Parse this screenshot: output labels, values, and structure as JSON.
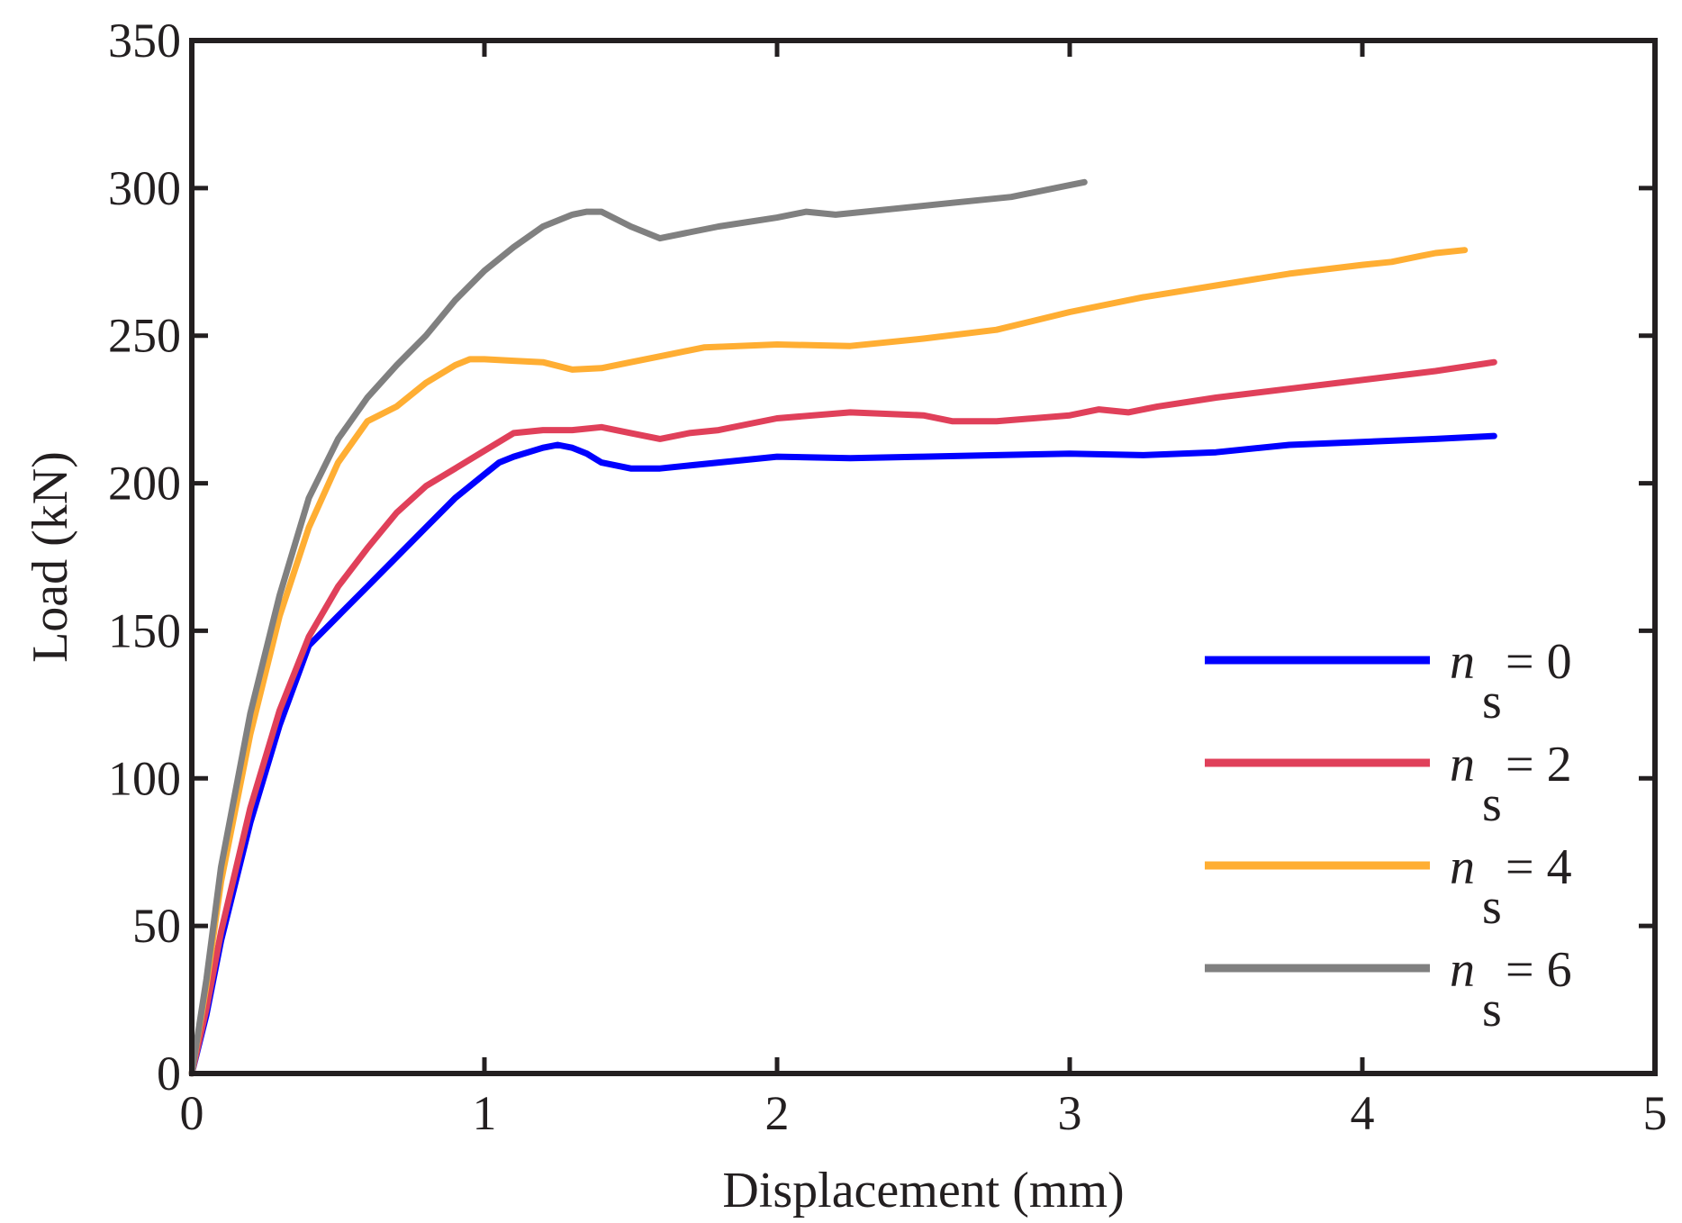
{
  "chart_data": {
    "type": "line",
    "title": "",
    "xlabel": "Displacement (mm)",
    "ylabel": "Load (kN)",
    "xlim": [
      0,
      5
    ],
    "ylim": [
      0,
      350
    ],
    "xticks": [
      0,
      1,
      2,
      3,
      4,
      5
    ],
    "yticks": [
      0,
      50,
      100,
      150,
      200,
      250,
      300,
      350
    ],
    "grid": false,
    "legend_position": "right",
    "legend_symbol": "n",
    "legend_subscript": "s",
    "series": [
      {
        "name": "n_s = 0",
        "label_value": "= 0",
        "color": "#0000ff",
        "points": [
          [
            0,
            0
          ],
          [
            0.05,
            20
          ],
          [
            0.1,
            45
          ],
          [
            0.2,
            85
          ],
          [
            0.3,
            118
          ],
          [
            0.4,
            145
          ],
          [
            0.5,
            155
          ],
          [
            0.6,
            165
          ],
          [
            0.7,
            175
          ],
          [
            0.8,
            185
          ],
          [
            0.9,
            195
          ],
          [
            1.0,
            203
          ],
          [
            1.05,
            207
          ],
          [
            1.1,
            209
          ],
          [
            1.2,
            212
          ],
          [
            1.25,
            213
          ],
          [
            1.3,
            212
          ],
          [
            1.35,
            210
          ],
          [
            1.4,
            207
          ],
          [
            1.5,
            205
          ],
          [
            1.6,
            205
          ],
          [
            1.7,
            206
          ],
          [
            1.8,
            207
          ],
          [
            1.9,
            208
          ],
          [
            2.0,
            209
          ],
          [
            2.25,
            208.5
          ],
          [
            2.5,
            209
          ],
          [
            2.75,
            209.5
          ],
          [
            3.0,
            210
          ],
          [
            3.25,
            209.5
          ],
          [
            3.5,
            210.5
          ],
          [
            3.75,
            213
          ],
          [
            4.0,
            214
          ],
          [
            4.25,
            215
          ],
          [
            4.45,
            216
          ]
        ]
      },
      {
        "name": "n_s = 2",
        "label_value": "= 2",
        "color": "#e0405a",
        "points": [
          [
            0,
            0
          ],
          [
            0.05,
            22
          ],
          [
            0.1,
            48
          ],
          [
            0.2,
            90
          ],
          [
            0.3,
            123
          ],
          [
            0.4,
            148
          ],
          [
            0.5,
            165
          ],
          [
            0.6,
            178
          ],
          [
            0.7,
            190
          ],
          [
            0.8,
            199
          ],
          [
            0.9,
            205
          ],
          [
            1.0,
            211
          ],
          [
            1.1,
            217
          ],
          [
            1.2,
            218
          ],
          [
            1.3,
            218
          ],
          [
            1.4,
            219
          ],
          [
            1.5,
            217
          ],
          [
            1.6,
            215
          ],
          [
            1.7,
            217
          ],
          [
            1.8,
            218
          ],
          [
            1.9,
            220
          ],
          [
            2.0,
            222
          ],
          [
            2.25,
            224
          ],
          [
            2.5,
            223
          ],
          [
            2.6,
            221
          ],
          [
            2.75,
            221
          ],
          [
            3.0,
            223
          ],
          [
            3.1,
            225
          ],
          [
            3.2,
            224
          ],
          [
            3.3,
            226
          ],
          [
            3.5,
            229
          ],
          [
            3.75,
            232
          ],
          [
            4.0,
            235
          ],
          [
            4.25,
            238
          ],
          [
            4.45,
            241
          ]
        ]
      },
      {
        "name": "n_s = 4",
        "label_value": "= 4",
        "color": "#ffae33",
        "points": [
          [
            0,
            0
          ],
          [
            0.05,
            30
          ],
          [
            0.1,
            65
          ],
          [
            0.2,
            115
          ],
          [
            0.3,
            155
          ],
          [
            0.4,
            185
          ],
          [
            0.5,
            207
          ],
          [
            0.6,
            221
          ],
          [
            0.7,
            226
          ],
          [
            0.8,
            234
          ],
          [
            0.9,
            240
          ],
          [
            0.95,
            242
          ],
          [
            1.0,
            242
          ],
          [
            1.1,
            241.5
          ],
          [
            1.2,
            241
          ],
          [
            1.3,
            238.5
          ],
          [
            1.4,
            239
          ],
          [
            1.5,
            241
          ],
          [
            1.6,
            243
          ],
          [
            1.75,
            246
          ],
          [
            2.0,
            247
          ],
          [
            2.25,
            246.5
          ],
          [
            2.5,
            249
          ],
          [
            2.75,
            252
          ],
          [
            3.0,
            258
          ],
          [
            3.25,
            263
          ],
          [
            3.5,
            267
          ],
          [
            3.75,
            271
          ],
          [
            4.0,
            274
          ],
          [
            4.1,
            275
          ],
          [
            4.2,
            277
          ],
          [
            4.25,
            278
          ],
          [
            4.35,
            279
          ]
        ]
      },
      {
        "name": "n_s = 6",
        "label_value": "= 6",
        "color": "#808080",
        "points": [
          [
            0,
            0
          ],
          [
            0.05,
            32
          ],
          [
            0.1,
            70
          ],
          [
            0.2,
            122
          ],
          [
            0.3,
            162
          ],
          [
            0.4,
            195
          ],
          [
            0.5,
            215
          ],
          [
            0.6,
            229
          ],
          [
            0.7,
            240
          ],
          [
            0.8,
            250
          ],
          [
            0.9,
            262
          ],
          [
            1.0,
            272
          ],
          [
            1.1,
            280
          ],
          [
            1.2,
            287
          ],
          [
            1.3,
            291
          ],
          [
            1.35,
            292
          ],
          [
            1.4,
            292
          ],
          [
            1.5,
            287
          ],
          [
            1.6,
            283
          ],
          [
            1.7,
            285
          ],
          [
            1.8,
            287
          ],
          [
            2.0,
            290
          ],
          [
            2.1,
            292
          ],
          [
            2.2,
            291
          ],
          [
            2.4,
            293
          ],
          [
            2.6,
            295
          ],
          [
            2.8,
            297
          ],
          [
            3.0,
            301
          ],
          [
            3.05,
            302
          ]
        ]
      }
    ]
  }
}
